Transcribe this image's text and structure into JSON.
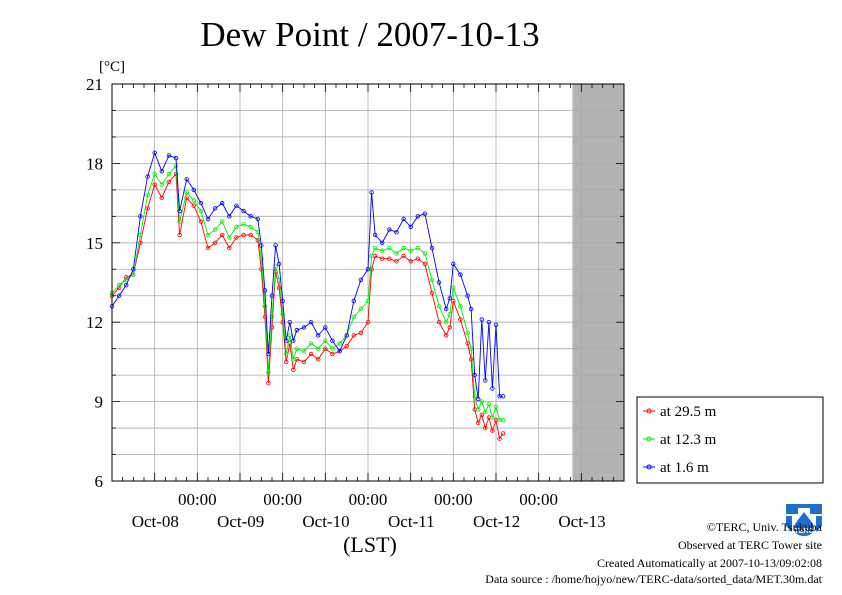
{
  "chart_data": {
    "type": "line",
    "title": "Dew Point / 2007-10-13",
    "y_unit": "[°C]",
    "xlabel": "(LST)",
    "ylim": [
      6,
      21
    ],
    "y_ticks": [
      "6",
      "9",
      "12",
      "15",
      "18",
      "21"
    ],
    "x_range_hours": [
      0,
      144
    ],
    "x_ticks": [
      {
        "hour": 24,
        "time": "00:00",
        "day": "Oct-08"
      },
      {
        "hour": 48,
        "time": "00:00",
        "day": "Oct-09"
      },
      {
        "hour": 72,
        "time": "00:00",
        "day": "Oct-10"
      },
      {
        "hour": 96,
        "time": "00:00",
        "day": "Oct-11"
      },
      {
        "hour": 120,
        "time": "00:00",
        "day": "Oct-12"
      },
      {
        "hour": 144,
        "time": "",
        "day": "Oct-13"
      }
    ],
    "no_data_from_hour": 129.5,
    "grid": true,
    "legend": "right",
    "series": [
      {
        "name": "at 29.5 m",
        "color": "#ff0000",
        "points": [
          [
            0,
            13.0
          ],
          [
            2,
            13.3
          ],
          [
            4,
            13.7
          ],
          [
            6,
            13.8
          ],
          [
            8,
            15.0
          ],
          [
            10,
            16.3
          ],
          [
            12,
            17.2
          ],
          [
            14,
            16.7
          ],
          [
            16,
            17.3
          ],
          [
            18,
            17.6
          ],
          [
            19,
            15.3
          ],
          [
            21,
            16.7
          ],
          [
            23,
            16.4
          ],
          [
            25,
            15.8
          ],
          [
            27,
            14.8
          ],
          [
            29,
            15.0
          ],
          [
            31,
            15.3
          ],
          [
            33,
            14.8
          ],
          [
            35,
            15.2
          ],
          [
            37,
            15.3
          ],
          [
            39,
            15.3
          ],
          [
            41,
            15.1
          ],
          [
            42,
            14.0
          ],
          [
            43,
            12.2
          ],
          [
            44,
            9.7
          ],
          [
            45,
            11.8
          ],
          [
            46,
            13.9
          ],
          [
            47,
            13.3
          ],
          [
            48,
            12.0
          ],
          [
            49,
            10.5
          ],
          [
            50,
            11.2
          ],
          [
            51,
            10.2
          ],
          [
            52,
            10.6
          ],
          [
            54,
            10.5
          ],
          [
            56,
            10.8
          ],
          [
            58,
            10.6
          ],
          [
            60,
            11.0
          ],
          [
            62,
            10.8
          ],
          [
            64,
            10.9
          ],
          [
            66,
            11.1
          ],
          [
            68,
            11.5
          ],
          [
            70,
            11.6
          ],
          [
            72,
            12.0
          ],
          [
            73,
            14.0
          ],
          [
            74,
            14.5
          ],
          [
            76,
            14.4
          ],
          [
            78,
            14.4
          ],
          [
            80,
            14.3
          ],
          [
            82,
            14.5
          ],
          [
            84,
            14.3
          ],
          [
            86,
            14.4
          ],
          [
            88,
            14.2
          ],
          [
            90,
            13.1
          ],
          [
            92,
            12.0
          ],
          [
            94,
            11.5
          ],
          [
            95,
            11.8
          ],
          [
            96,
            12.8
          ],
          [
            98,
            12.1
          ],
          [
            100,
            11.2
          ],
          [
            101,
            10.6
          ],
          [
            102,
            8.7
          ],
          [
            103,
            8.2
          ],
          [
            104,
            8.5
          ],
          [
            105,
            8.0
          ],
          [
            106,
            8.4
          ],
          [
            107,
            7.9
          ],
          [
            108,
            8.3
          ],
          [
            109,
            7.6
          ],
          [
            110,
            7.8
          ]
        ]
      },
      {
        "name": "at 12.3 m",
        "color": "#00ee00",
        "points": [
          [
            0,
            13.1
          ],
          [
            2,
            13.4
          ],
          [
            4,
            13.6
          ],
          [
            6,
            13.8
          ],
          [
            8,
            15.3
          ],
          [
            10,
            16.8
          ],
          [
            12,
            17.6
          ],
          [
            14,
            17.2
          ],
          [
            16,
            17.6
          ],
          [
            18,
            17.9
          ],
          [
            19,
            15.8
          ],
          [
            21,
            16.9
          ],
          [
            23,
            16.6
          ],
          [
            25,
            16.2
          ],
          [
            27,
            15.3
          ],
          [
            29,
            15.5
          ],
          [
            31,
            15.8
          ],
          [
            33,
            15.2
          ],
          [
            35,
            15.6
          ],
          [
            37,
            15.7
          ],
          [
            39,
            15.6
          ],
          [
            41,
            15.4
          ],
          [
            42,
            14.4
          ],
          [
            43,
            12.6
          ],
          [
            44,
            10.1
          ],
          [
            45,
            12.2
          ],
          [
            46,
            14.1
          ],
          [
            47,
            13.6
          ],
          [
            48,
            12.3
          ],
          [
            49,
            10.8
          ],
          [
            50,
            11.5
          ],
          [
            51,
            10.6
          ],
          [
            52,
            11.0
          ],
          [
            54,
            10.9
          ],
          [
            56,
            11.2
          ],
          [
            58,
            11.0
          ],
          [
            60,
            11.3
          ],
          [
            62,
            11.0
          ],
          [
            64,
            11.2
          ],
          [
            66,
            11.5
          ],
          [
            68,
            12.2
          ],
          [
            70,
            12.5
          ],
          [
            72,
            12.8
          ],
          [
            73,
            14.5
          ],
          [
            74,
            14.8
          ],
          [
            76,
            14.7
          ],
          [
            78,
            14.8
          ],
          [
            80,
            14.6
          ],
          [
            82,
            14.8
          ],
          [
            84,
            14.7
          ],
          [
            86,
            14.8
          ],
          [
            88,
            14.6
          ],
          [
            90,
            13.6
          ],
          [
            92,
            12.6
          ],
          [
            94,
            12.0
          ],
          [
            95,
            12.3
          ],
          [
            96,
            13.3
          ],
          [
            98,
            12.6
          ],
          [
            100,
            11.6
          ],
          [
            101,
            11.0
          ],
          [
            102,
            9.2
          ],
          [
            103,
            8.7
          ],
          [
            104,
            9.0
          ],
          [
            105,
            8.6
          ],
          [
            106,
            8.9
          ],
          [
            107,
            8.4
          ],
          [
            108,
            8.8
          ],
          [
            109,
            8.3
          ],
          [
            110,
            8.3
          ]
        ]
      },
      {
        "name": "at 1.6 m",
        "color": "#0000ff",
        "points": [
          [
            0,
            12.6
          ],
          [
            2,
            13.0
          ],
          [
            4,
            13.4
          ],
          [
            6,
            14.0
          ],
          [
            8,
            16.0
          ],
          [
            10,
            17.5
          ],
          [
            12,
            18.4
          ],
          [
            14,
            17.7
          ],
          [
            16,
            18.3
          ],
          [
            18,
            18.2
          ],
          [
            19,
            16.2
          ],
          [
            21,
            17.4
          ],
          [
            23,
            17.0
          ],
          [
            25,
            16.5
          ],
          [
            27,
            15.9
          ],
          [
            29,
            16.3
          ],
          [
            31,
            16.5
          ],
          [
            33,
            16.0
          ],
          [
            35,
            16.4
          ],
          [
            37,
            16.2
          ],
          [
            39,
            16.0
          ],
          [
            41,
            15.9
          ],
          [
            42,
            14.9
          ],
          [
            43,
            13.2
          ],
          [
            44,
            10.8
          ],
          [
            45,
            13.0
          ],
          [
            46,
            14.9
          ],
          [
            47,
            14.2
          ],
          [
            48,
            12.8
          ],
          [
            49,
            11.3
          ],
          [
            50,
            12.0
          ],
          [
            51,
            11.3
          ],
          [
            52,
            11.7
          ],
          [
            54,
            11.8
          ],
          [
            56,
            12.0
          ],
          [
            58,
            11.5
          ],
          [
            60,
            11.8
          ],
          [
            62,
            11.3
          ],
          [
            64,
            10.9
          ],
          [
            66,
            11.5
          ],
          [
            68,
            12.8
          ],
          [
            70,
            13.6
          ],
          [
            72,
            14.0
          ],
          [
            73,
            16.9
          ],
          [
            74,
            15.3
          ],
          [
            76,
            15.0
          ],
          [
            78,
            15.5
          ],
          [
            80,
            15.4
          ],
          [
            82,
            15.9
          ],
          [
            84,
            15.6
          ],
          [
            86,
            16.0
          ],
          [
            88,
            16.1
          ],
          [
            90,
            14.8
          ],
          [
            92,
            13.5
          ],
          [
            94,
            12.5
          ],
          [
            95,
            12.9
          ],
          [
            96,
            14.2
          ],
          [
            98,
            13.8
          ],
          [
            100,
            13.0
          ],
          [
            101,
            12.5
          ],
          [
            102,
            10.0
          ],
          [
            103,
            9.1
          ],
          [
            104,
            12.1
          ],
          [
            105,
            9.8
          ],
          [
            106,
            12.0
          ],
          [
            107,
            9.5
          ],
          [
            108,
            11.9
          ],
          [
            109,
            9.2
          ],
          [
            110,
            9.2
          ]
        ]
      }
    ]
  },
  "credits": {
    "copyright": "©TERC, Univ. Tsukuba",
    "observed": "Observed at TERC Tower site",
    "created": "Created Automatically at 2007-10-13/09:02:08",
    "source": "Data source : /home/hojyo/new/TERC-data/sorted_data/MET.30m.dat",
    "logo_text": "TERC"
  }
}
